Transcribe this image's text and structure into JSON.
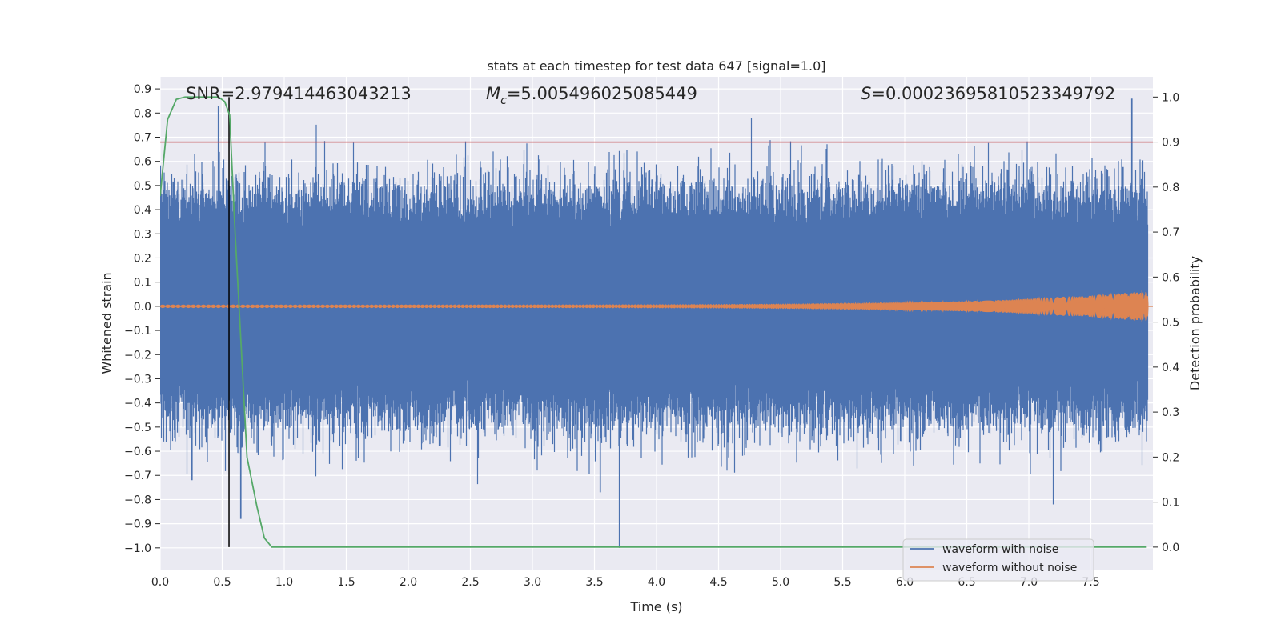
{
  "chart_data": {
    "type": "line",
    "title": "stats at each timestep for test data 647 [signal=1.0]",
    "xlabel": "Time (s)",
    "ylabel": "Whitened strain",
    "y2label": "Detection probability",
    "xlim": [
      0.0,
      8.0
    ],
    "ylim": [
      -1.09,
      0.95
    ],
    "y2lim": [
      -0.05,
      1.045
    ],
    "xticks": [
      "0.0",
      "0.5",
      "1.0",
      "1.5",
      "2.0",
      "2.5",
      "3.0",
      "3.5",
      "4.0",
      "4.5",
      "5.0",
      "5.5",
      "6.0",
      "6.5",
      "7.0",
      "7.5"
    ],
    "yticks": [
      "0.9",
      "0.8",
      "0.7",
      "0.6",
      "0.5",
      "0.4",
      "0.3",
      "0.2",
      "0.1",
      "0.0",
      "−0.1",
      "−0.2",
      "−0.3",
      "−0.4",
      "−0.5",
      "−0.6",
      "−0.7",
      "−0.8",
      "−0.9",
      "−1.0"
    ],
    "y2ticks": [
      "1.0",
      "0.9",
      "0.8",
      "0.7",
      "0.6",
      "0.5",
      "0.4",
      "0.3",
      "0.2",
      "0.1",
      "0.0"
    ],
    "annotations": {
      "snr_label": "SNR",
      "snr_value": "=2.979414463043213",
      "mc_symbol": "M",
      "mc_sub": "c",
      "mc_value": "=5.005496025085449",
      "s_symbol": "S",
      "s_value": "=0.00023695810523349792"
    },
    "threshold": {
      "value": 0.9,
      "axis": "right",
      "color": "#c44e52"
    },
    "detection_time": 0.555,
    "series": [
      {
        "name": "waveform with noise",
        "color": "#4c72b0",
        "axis": "left",
        "x_range": [
          0.0,
          7.96
        ],
        "envelope": {
          "typical_abs": 0.3,
          "max": 0.86,
          "min": -1.0
        },
        "notable_peaks": [
          [
            0.47,
            0.83
          ],
          [
            7.83,
            0.86
          ],
          [
            3.7,
            -1.0
          ],
          [
            7.2,
            -0.82
          ],
          [
            0.65,
            -0.88
          ],
          [
            3.55,
            -0.77
          ],
          [
            0.26,
            -0.72
          ]
        ]
      },
      {
        "name": "waveform without noise",
        "color": "#dd8452",
        "axis": "left",
        "x_range": [
          0.0,
          8.0
        ],
        "amplitude_start": 0.005,
        "amplitude_end": 0.06,
        "chirp_end": 7.96
      },
      {
        "name": "detection probability",
        "color": "#55a868",
        "axis": "right",
        "x": [
          0.0,
          0.06,
          0.13,
          0.2,
          0.3,
          0.4,
          0.47,
          0.52,
          0.56,
          0.6,
          0.65,
          0.7,
          0.78,
          0.84,
          0.9,
          1.0,
          2.0,
          3.0,
          4.0,
          5.0,
          6.0,
          7.0,
          7.95
        ],
        "values": [
          0.78,
          0.95,
          0.995,
          1.0,
          1.0,
          1.0,
          1.0,
          0.99,
          0.96,
          0.72,
          0.46,
          0.2,
          0.09,
          0.02,
          0.0,
          0.0,
          0.0,
          0.0,
          0.0,
          0.0,
          0.0,
          0.0,
          0.0
        ]
      }
    ],
    "legend": {
      "location": "lower-right",
      "entries": [
        {
          "label": "waveform with noise",
          "color": "#4c72b0"
        },
        {
          "label": "waveform without noise",
          "color": "#dd8452"
        }
      ]
    }
  }
}
